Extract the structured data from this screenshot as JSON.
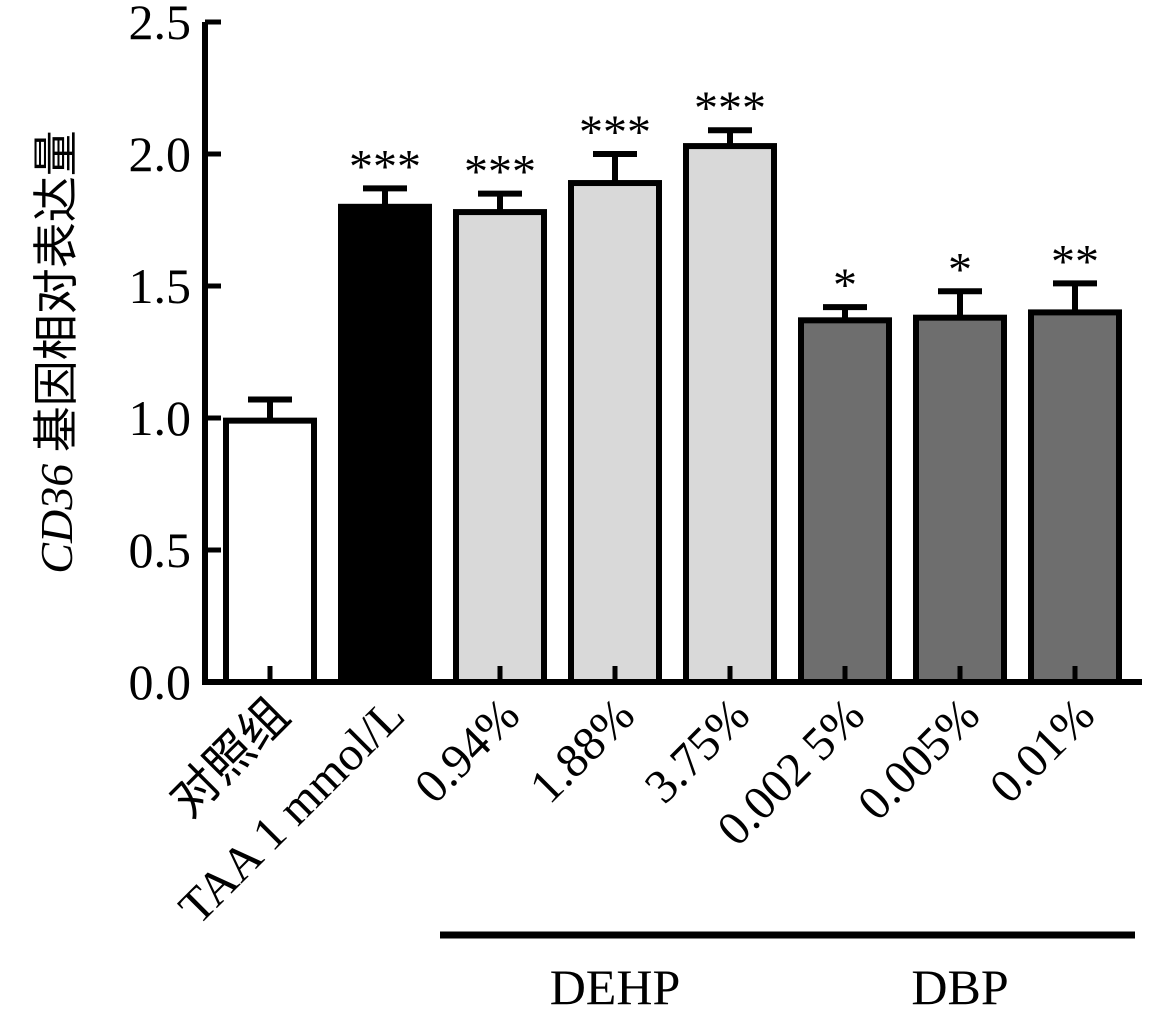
{
  "chart_data": {
    "type": "bar",
    "ylabel_italic": "CD36",
    "ylabel_rest": " 基因相对表达量",
    "ylim": [
      0,
      2.5
    ],
    "yticks": [
      0.0,
      0.5,
      1.0,
      1.5,
      2.0,
      2.5
    ],
    "ytick_labels": [
      "0.0",
      "0.5",
      "1.0",
      "1.5",
      "2.0",
      "2.5"
    ],
    "categories": [
      "对照组",
      "TAA 1 mmol/L",
      "0.94%",
      "1.88%",
      "3.75%",
      "0.002 5%",
      "0.005%",
      "0.01%"
    ],
    "values": [
      0.99,
      1.8,
      1.78,
      1.89,
      2.03,
      1.37,
      1.38,
      1.4
    ],
    "errors": [
      0.08,
      0.07,
      0.07,
      0.11,
      0.06,
      0.05,
      0.1,
      0.11
    ],
    "significance": [
      "",
      "***",
      "***",
      "***",
      "***",
      "*",
      "*",
      "**"
    ],
    "bar_colors": [
      "#ffffff",
      "#000000",
      "#d9d9d9",
      "#d9d9d9",
      "#d9d9d9",
      "#6e6e6e",
      "#6e6e6e",
      "#6e6e6e"
    ],
    "groups": [
      {
        "label": "DEHP",
        "start_index": 2,
        "end_index": 4
      },
      {
        "label": "DBP",
        "start_index": 5,
        "end_index": 7
      }
    ],
    "grid": false,
    "legend": "none"
  }
}
